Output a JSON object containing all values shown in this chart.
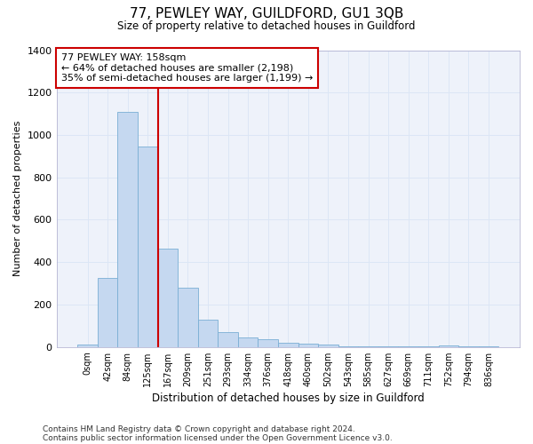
{
  "title": "77, PEWLEY WAY, GUILDFORD, GU1 3QB",
  "subtitle": "Size of property relative to detached houses in Guildford",
  "xlabel": "Distribution of detached houses by size in Guildford",
  "ylabel": "Number of detached properties",
  "categories": [
    "0sqm",
    "42sqm",
    "84sqm",
    "125sqm",
    "167sqm",
    "209sqm",
    "251sqm",
    "293sqm",
    "334sqm",
    "376sqm",
    "418sqm",
    "460sqm",
    "502sqm",
    "543sqm",
    "585sqm",
    "627sqm",
    "669sqm",
    "711sqm",
    "752sqm",
    "794sqm",
    "836sqm"
  ],
  "values": [
    10,
    325,
    1110,
    945,
    465,
    280,
    130,
    70,
    45,
    35,
    20,
    17,
    10,
    2,
    1,
    1,
    1,
    1,
    8,
    1,
    1
  ],
  "bar_color": "#c5d8f0",
  "bar_edge_color": "#7aafd4",
  "grid_color": "#dce6f5",
  "background_color": "#ffffff",
  "plot_bg_color": "#eef2fa",
  "red_line_x": 3.5,
  "annotation_text": "77 PEWLEY WAY: 158sqm\n← 64% of detached houses are smaller (2,198)\n35% of semi-detached houses are larger (1,199) →",
  "annotation_box_color": "#ffffff",
  "annotation_box_edge_color": "#cc0000",
  "vline_color": "#cc0000",
  "ylim": [
    0,
    1400
  ],
  "yticks": [
    0,
    200,
    400,
    600,
    800,
    1000,
    1200,
    1400
  ],
  "footer_line1": "Contains HM Land Registry data © Crown copyright and database right 2024.",
  "footer_line2": "Contains public sector information licensed under the Open Government Licence v3.0."
}
